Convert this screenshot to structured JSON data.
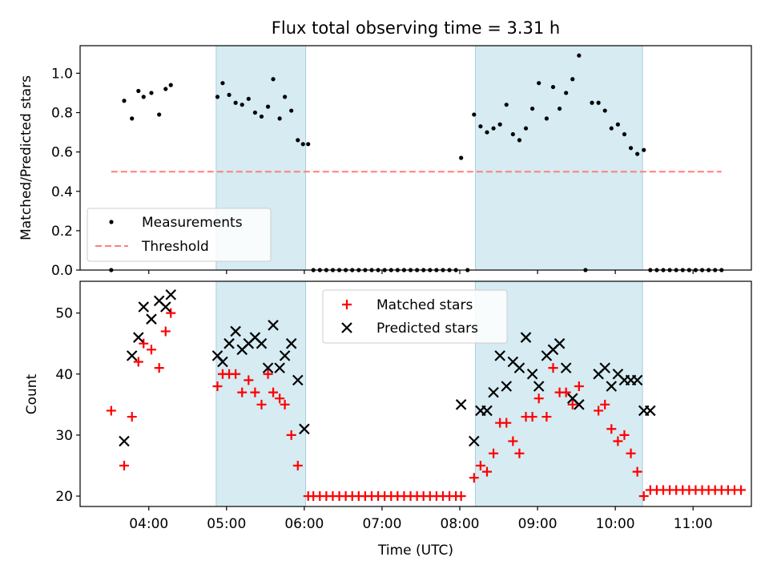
{
  "figure": {
    "title": "Flux total observing time = 3.31 h"
  },
  "shaded_spans": [
    {
      "start": "04:52",
      "end": "06:01"
    },
    {
      "start": "08:12",
      "end": "10:21"
    }
  ],
  "chart_data": [
    {
      "type": "scatter",
      "ylabel": "Matched/Predicted stars",
      "ylim": [
        0,
        1.14
      ],
      "yticks": [
        0.0,
        0.2,
        0.4,
        0.6,
        0.8,
        1.0
      ],
      "yticklabels": [
        "0.0",
        "0.2",
        "0.4",
        "0.6",
        "0.8",
        "1.0"
      ],
      "xlim": [
        "03:07",
        "11:45"
      ],
      "xticks": [
        "04:00",
        "05:00",
        "06:00",
        "07:00",
        "08:00",
        "09:00",
        "10:00",
        "11:00"
      ],
      "grid": false,
      "legend": {
        "placement": "lower-left",
        "entries": [
          "Measurements",
          "Threshold"
        ]
      },
      "series": [
        {
          "name": "Measurements",
          "marker": "dot",
          "color": "#000000",
          "points": [
            [
              "03:31",
              0
            ],
            [
              "03:41",
              0.86
            ],
            [
              "03:47",
              0.77
            ],
            [
              "03:52",
              0.91
            ],
            [
              "03:56",
              0.88
            ],
            [
              "04:02",
              0.9
            ],
            [
              "04:08",
              0.79
            ],
            [
              "04:13",
              0.92
            ],
            [
              "04:17",
              0.94
            ],
            [
              "04:53",
              0.88
            ],
            [
              "04:57",
              0.95
            ],
            [
              "05:02",
              0.89
            ],
            [
              "05:07",
              0.85
            ],
            [
              "05:12",
              0.84
            ],
            [
              "05:17",
              0.87
            ],
            [
              "05:22",
              0.8
            ],
            [
              "05:27",
              0.78
            ],
            [
              "05:32",
              0.83
            ],
            [
              "05:36",
              0.97
            ],
            [
              "05:41",
              0.77
            ],
            [
              "05:45",
              0.88
            ],
            [
              "05:50",
              0.81
            ],
            [
              "05:55",
              0.66
            ],
            [
              "05:59",
              0.64
            ],
            [
              "06:03",
              0.64
            ],
            [
              "06:07",
              0
            ],
            [
              "06:12",
              0
            ],
            [
              "06:17",
              0
            ],
            [
              "06:22",
              0
            ],
            [
              "06:27",
              0
            ],
            [
              "06:32",
              0
            ],
            [
              "06:37",
              0
            ],
            [
              "06:42",
              0
            ],
            [
              "06:47",
              0
            ],
            [
              "06:52",
              0
            ],
            [
              "06:57",
              0
            ],
            [
              "07:02",
              0
            ],
            [
              "07:07",
              0
            ],
            [
              "07:12",
              0
            ],
            [
              "07:17",
              0
            ],
            [
              "07:22",
              0
            ],
            [
              "07:27",
              0
            ],
            [
              "07:32",
              0
            ],
            [
              "07:37",
              0
            ],
            [
              "07:42",
              0
            ],
            [
              "07:47",
              0
            ],
            [
              "07:52",
              0
            ],
            [
              "07:57",
              0
            ],
            [
              "08:01",
              0.57
            ],
            [
              "08:06",
              0
            ],
            [
              "08:11",
              0.79
            ],
            [
              "08:16",
              0.73
            ],
            [
              "08:21",
              0.7
            ],
            [
              "08:26",
              0.72
            ],
            [
              "08:31",
              0.74
            ],
            [
              "08:36",
              0.84
            ],
            [
              "08:41",
              0.69
            ],
            [
              "08:46",
              0.66
            ],
            [
              "08:51",
              0.72
            ],
            [
              "08:56",
              0.82
            ],
            [
              "09:01",
              0.95
            ],
            [
              "09:07",
              0.77
            ],
            [
              "09:12",
              0.93
            ],
            [
              "09:17",
              0.82
            ],
            [
              "09:22",
              0.9
            ],
            [
              "09:27",
              0.97
            ],
            [
              "09:32",
              1.09
            ],
            [
              "09:37",
              0
            ],
            [
              "09:42",
              0.85
            ],
            [
              "09:47",
              0.85
            ],
            [
              "09:52",
              0.81
            ],
            [
              "09:57",
              0.72
            ],
            [
              "10:02",
              0.74
            ],
            [
              "10:07",
              0.69
            ],
            [
              "10:12",
              0.62
            ],
            [
              "10:17",
              0.59
            ],
            [
              "10:22",
              0.61
            ],
            [
              "10:27",
              0
            ],
            [
              "10:32",
              0
            ],
            [
              "10:37",
              0
            ],
            [
              "10:42",
              0
            ],
            [
              "10:47",
              0
            ],
            [
              "10:52",
              0
            ],
            [
              "10:57",
              0
            ],
            [
              "11:02",
              0
            ],
            [
              "11:07",
              0
            ],
            [
              "11:12",
              0
            ],
            [
              "11:17",
              0
            ],
            [
              "11:22",
              0
            ]
          ]
        },
        {
          "name": "Threshold",
          "style": "dashed",
          "color": "#ff7f7f",
          "points": [
            [
              "03:31",
              0.5
            ],
            [
              "11:22",
              0.5
            ]
          ]
        }
      ]
    },
    {
      "type": "scatter",
      "xlabel": "Time (UTC)",
      "ylabel": "Count",
      "ylim": [
        18.3,
        55.2
      ],
      "yticks": [
        20,
        30,
        40,
        50
      ],
      "yticklabels": [
        "20",
        "30",
        "40",
        "50"
      ],
      "xlim": [
        "03:07",
        "11:45"
      ],
      "xticks": [
        "04:00",
        "05:00",
        "06:00",
        "07:00",
        "08:00",
        "09:00",
        "10:00",
        "11:00"
      ],
      "xticklabels": [
        "04:00",
        "05:00",
        "06:00",
        "07:00",
        "08:00",
        "09:00",
        "10:00",
        "11:00"
      ],
      "grid": false,
      "legend": {
        "placement": "upper-center",
        "entries": [
          "Matched stars",
          "Predicted stars"
        ]
      },
      "series": [
        {
          "name": "Matched stars",
          "marker": "plus",
          "color": "#ff0000",
          "points": [
            [
              "03:31",
              34
            ],
            [
              "03:41",
              25
            ],
            [
              "03:47",
              33
            ],
            [
              "03:52",
              42
            ],
            [
              "03:56",
              45
            ],
            [
              "04:02",
              44
            ],
            [
              "04:08",
              41
            ],
            [
              "04:13",
              47
            ],
            [
              "04:17",
              50
            ],
            [
              "04:53",
              38
            ],
            [
              "04:57",
              40
            ],
            [
              "05:02",
              40
            ],
            [
              "05:07",
              40
            ],
            [
              "05:12",
              37
            ],
            [
              "05:17",
              39
            ],
            [
              "05:22",
              37
            ],
            [
              "05:27",
              35
            ],
            [
              "05:32",
              40
            ],
            [
              "05:36",
              37
            ],
            [
              "05:41",
              36
            ],
            [
              "05:45",
              35
            ],
            [
              "05:50",
              30
            ],
            [
              "05:55",
              25
            ],
            [
              "06:03",
              20
            ],
            [
              "06:07",
              20
            ],
            [
              "06:12",
              20
            ],
            [
              "06:17",
              20
            ],
            [
              "06:22",
              20
            ],
            [
              "06:27",
              20
            ],
            [
              "06:32",
              20
            ],
            [
              "06:37",
              20
            ],
            [
              "06:42",
              20
            ],
            [
              "06:47",
              20
            ],
            [
              "06:52",
              20
            ],
            [
              "06:57",
              20
            ],
            [
              "07:02",
              20
            ],
            [
              "07:07",
              20
            ],
            [
              "07:12",
              20
            ],
            [
              "07:17",
              20
            ],
            [
              "07:22",
              20
            ],
            [
              "07:27",
              20
            ],
            [
              "07:32",
              20
            ],
            [
              "07:37",
              20
            ],
            [
              "07:42",
              20
            ],
            [
              "07:47",
              20
            ],
            [
              "07:52",
              20
            ],
            [
              "07:57",
              20
            ],
            [
              "08:01",
              20
            ],
            [
              "08:11",
              23
            ],
            [
              "08:16",
              25
            ],
            [
              "08:21",
              24
            ],
            [
              "08:26",
              27
            ],
            [
              "08:31",
              32
            ],
            [
              "08:36",
              32
            ],
            [
              "08:41",
              29
            ],
            [
              "08:46",
              27
            ],
            [
              "08:51",
              33
            ],
            [
              "08:56",
              33
            ],
            [
              "09:01",
              36
            ],
            [
              "09:07",
              33
            ],
            [
              "09:12",
              41
            ],
            [
              "09:17",
              37
            ],
            [
              "09:22",
              37
            ],
            [
              "09:27",
              35
            ],
            [
              "09:32",
              38
            ],
            [
              "09:47",
              34
            ],
            [
              "09:52",
              35
            ],
            [
              "09:57",
              31
            ],
            [
              "10:02",
              29
            ],
            [
              "10:07",
              30
            ],
            [
              "10:12",
              27
            ],
            [
              "10:17",
              24
            ],
            [
              "10:22",
              20
            ],
            [
              "10:27",
              21
            ],
            [
              "10:32",
              21
            ],
            [
              "10:37",
              21
            ],
            [
              "10:42",
              21
            ],
            [
              "10:47",
              21
            ],
            [
              "10:52",
              21
            ],
            [
              "10:57",
              21
            ],
            [
              "11:02",
              21
            ],
            [
              "11:07",
              21
            ],
            [
              "11:12",
              21
            ],
            [
              "11:17",
              21
            ],
            [
              "11:22",
              21
            ],
            [
              "11:27",
              21
            ],
            [
              "11:32",
              21
            ],
            [
              "11:37",
              21
            ]
          ]
        },
        {
          "name": "Predicted stars",
          "marker": "x",
          "color": "#000000",
          "points": [
            [
              "03:41",
              29
            ],
            [
              "03:47",
              43
            ],
            [
              "03:52",
              46
            ],
            [
              "03:56",
              51
            ],
            [
              "04:02",
              49
            ],
            [
              "04:08",
              52
            ],
            [
              "04:13",
              51
            ],
            [
              "04:17",
              53
            ],
            [
              "04:53",
              43
            ],
            [
              "04:57",
              42
            ],
            [
              "05:02",
              45
            ],
            [
              "05:07",
              47
            ],
            [
              "05:12",
              44
            ],
            [
              "05:17",
              45
            ],
            [
              "05:22",
              46
            ],
            [
              "05:27",
              45
            ],
            [
              "05:32",
              41
            ],
            [
              "05:36",
              48
            ],
            [
              "05:41",
              41
            ],
            [
              "05:45",
              43
            ],
            [
              "05:50",
              45
            ],
            [
              "05:55",
              39
            ],
            [
              "06:00",
              31
            ],
            [
              "08:01",
              35
            ],
            [
              "08:11",
              29
            ],
            [
              "08:16",
              34
            ],
            [
              "08:21",
              34
            ],
            [
              "08:26",
              37
            ],
            [
              "08:31",
              43
            ],
            [
              "08:36",
              38
            ],
            [
              "08:41",
              42
            ],
            [
              "08:46",
              41
            ],
            [
              "08:51",
              46
            ],
            [
              "08:56",
              40
            ],
            [
              "09:01",
              38
            ],
            [
              "09:07",
              43
            ],
            [
              "09:12",
              44
            ],
            [
              "09:17",
              45
            ],
            [
              "09:22",
              41
            ],
            [
              "09:27",
              36
            ],
            [
              "09:32",
              35
            ],
            [
              "09:47",
              40
            ],
            [
              "09:52",
              41
            ],
            [
              "09:57",
              38
            ],
            [
              "10:02",
              40
            ],
            [
              "10:07",
              39
            ],
            [
              "10:12",
              39
            ],
            [
              "10:17",
              39
            ],
            [
              "10:22",
              34
            ],
            [
              "10:27",
              34
            ]
          ]
        }
      ]
    }
  ]
}
